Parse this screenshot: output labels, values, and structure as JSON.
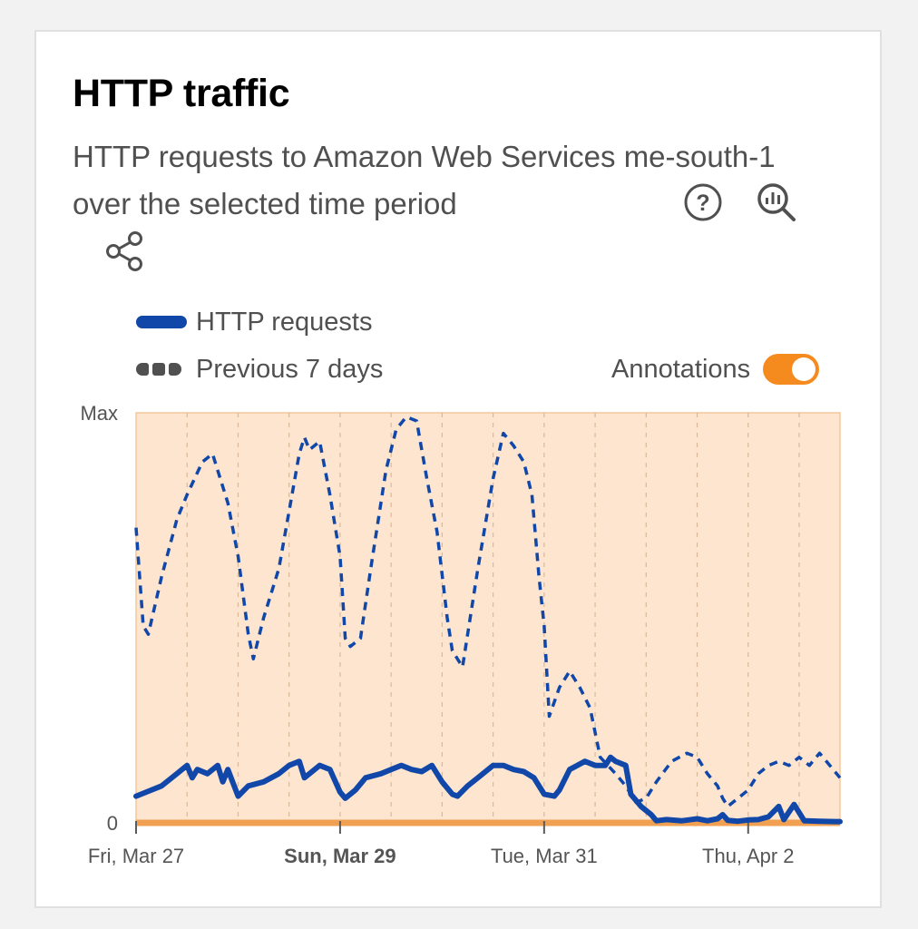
{
  "card": {
    "title": "HTTP traffic",
    "description": "HTTP requests to Amazon Web Services me-south-1 over the selected time period"
  },
  "icons": {
    "help": "help-circle-icon",
    "zoom": "zoom-chart-icon",
    "share": "share-icon"
  },
  "legend": {
    "current_label": "HTTP requests",
    "previous_label": "Previous 7 days"
  },
  "annotations": {
    "label": "Annotations",
    "enabled": true
  },
  "colors": {
    "current": "#1047a8",
    "previous": "#1047a8",
    "annotation_band": "#fde5cf",
    "baseline": "#f0a050",
    "toggle": "#f58a1f"
  },
  "chart_data": {
    "type": "line",
    "title": "",
    "xlabel": "",
    "ylabel": "",
    "y_tick_labels": [
      "0",
      "Max"
    ],
    "ylim": [
      0,
      100
    ],
    "x_range_days": [
      0,
      6.9
    ],
    "x_ticks": [
      {
        "day": 0,
        "label": "Fri, Mar 27",
        "bold": false
      },
      {
        "day": 2,
        "label": "Sun, Mar 29",
        "bold": true
      },
      {
        "day": 4,
        "label": "Tue, Mar 31",
        "bold": false
      },
      {
        "day": 6,
        "label": "Thu, Apr 2",
        "bold": false
      }
    ],
    "grid": "vertical dashed every half day",
    "series": [
      {
        "name": "HTTP requests",
        "style": "solid",
        "points": [
          [
            0,
            6.5
          ],
          [
            0.1,
            7.5
          ],
          [
            0.25,
            9
          ],
          [
            0.4,
            12
          ],
          [
            0.5,
            14
          ],
          [
            0.55,
            11
          ],
          [
            0.6,
            13
          ],
          [
            0.7,
            12
          ],
          [
            0.8,
            14
          ],
          [
            0.85,
            10
          ],
          [
            0.9,
            13
          ],
          [
            1.0,
            6.5
          ],
          [
            1.1,
            9
          ],
          [
            1.25,
            10
          ],
          [
            1.4,
            12
          ],
          [
            1.5,
            14
          ],
          [
            1.6,
            15
          ],
          [
            1.65,
            11
          ],
          [
            1.7,
            12
          ],
          [
            1.8,
            14
          ],
          [
            1.9,
            13
          ],
          [
            2.0,
            7.5
          ],
          [
            2.05,
            6
          ],
          [
            2.15,
            8
          ],
          [
            2.25,
            11
          ],
          [
            2.4,
            12
          ],
          [
            2.5,
            13
          ],
          [
            2.6,
            14
          ],
          [
            2.7,
            13
          ],
          [
            2.8,
            12.5
          ],
          [
            2.9,
            14
          ],
          [
            3.0,
            10
          ],
          [
            3.1,
            7
          ],
          [
            3.15,
            6.5
          ],
          [
            3.25,
            9
          ],
          [
            3.35,
            11
          ],
          [
            3.5,
            14
          ],
          [
            3.6,
            14
          ],
          [
            3.7,
            13
          ],
          [
            3.8,
            12.5
          ],
          [
            3.9,
            11
          ],
          [
            4.0,
            7
          ],
          [
            4.1,
            6.5
          ],
          [
            4.15,
            8
          ],
          [
            4.25,
            13
          ],
          [
            4.4,
            15
          ],
          [
            4.5,
            14
          ],
          [
            4.6,
            14
          ],
          [
            4.65,
            16
          ],
          [
            4.7,
            15
          ],
          [
            4.8,
            14
          ],
          [
            4.85,
            7
          ],
          [
            4.95,
            4
          ],
          [
            5.05,
            2
          ],
          [
            5.1,
            0.5
          ],
          [
            5.2,
            0.8
          ],
          [
            5.35,
            0.5
          ],
          [
            5.5,
            1
          ],
          [
            5.6,
            0.5
          ],
          [
            5.7,
            1
          ],
          [
            5.75,
            2
          ],
          [
            5.8,
            0.6
          ],
          [
            5.9,
            0.4
          ],
          [
            6.0,
            0.7
          ],
          [
            6.1,
            0.8
          ],
          [
            6.2,
            1.5
          ],
          [
            6.3,
            4
          ],
          [
            6.35,
            0.8
          ],
          [
            6.45,
            4.5
          ],
          [
            6.55,
            0.5
          ],
          [
            6.7,
            0.4
          ],
          [
            6.85,
            0.3
          ],
          [
            6.9,
            0.3
          ]
        ]
      },
      {
        "name": "Previous 7 days",
        "style": "dashed",
        "points": [
          [
            0,
            72
          ],
          [
            0.07,
            48
          ],
          [
            0.12,
            46
          ],
          [
            0.25,
            60
          ],
          [
            0.4,
            74
          ],
          [
            0.5,
            80
          ],
          [
            0.65,
            88
          ],
          [
            0.75,
            90
          ],
          [
            0.9,
            78
          ],
          [
            1.0,
            65
          ],
          [
            1.1,
            46
          ],
          [
            1.15,
            40
          ],
          [
            1.25,
            50
          ],
          [
            1.4,
            62
          ],
          [
            1.5,
            76
          ],
          [
            1.6,
            90
          ],
          [
            1.65,
            94
          ],
          [
            1.7,
            91
          ],
          [
            1.8,
            93
          ],
          [
            1.9,
            80
          ],
          [
            2.0,
            65
          ],
          [
            2.05,
            45
          ],
          [
            2.1,
            43
          ],
          [
            2.2,
            45
          ],
          [
            2.3,
            62
          ],
          [
            2.45,
            86
          ],
          [
            2.55,
            96
          ],
          [
            2.65,
            99
          ],
          [
            2.75,
            98
          ],
          [
            2.85,
            84
          ],
          [
            2.95,
            71
          ],
          [
            3.05,
            50
          ],
          [
            3.1,
            42
          ],
          [
            3.2,
            38
          ],
          [
            3.35,
            62
          ],
          [
            3.5,
            84
          ],
          [
            3.6,
            95
          ],
          [
            3.7,
            92
          ],
          [
            3.8,
            88
          ],
          [
            3.88,
            80
          ],
          [
            3.95,
            60
          ],
          [
            4.0,
            48
          ],
          [
            4.05,
            26
          ],
          [
            4.15,
            33
          ],
          [
            4.25,
            37
          ],
          [
            4.35,
            33
          ],
          [
            4.45,
            28
          ],
          [
            4.55,
            16
          ],
          [
            4.7,
            12
          ],
          [
            4.8,
            9
          ],
          [
            4.9,
            5
          ],
          [
            5.0,
            6
          ],
          [
            5.1,
            10
          ],
          [
            5.25,
            15
          ],
          [
            5.4,
            17
          ],
          [
            5.5,
            16
          ],
          [
            5.6,
            12
          ],
          [
            5.7,
            9
          ],
          [
            5.75,
            6
          ],
          [
            5.8,
            4
          ],
          [
            5.9,
            6
          ],
          [
            6.0,
            8
          ],
          [
            6.1,
            12
          ],
          [
            6.2,
            14
          ],
          [
            6.3,
            15
          ],
          [
            6.4,
            14
          ],
          [
            6.5,
            16
          ],
          [
            6.6,
            14
          ],
          [
            6.7,
            17
          ],
          [
            6.8,
            14
          ],
          [
            6.9,
            11
          ]
        ]
      }
    ],
    "annotation_band": {
      "start_day": 0,
      "end_day": 6.9
    }
  }
}
